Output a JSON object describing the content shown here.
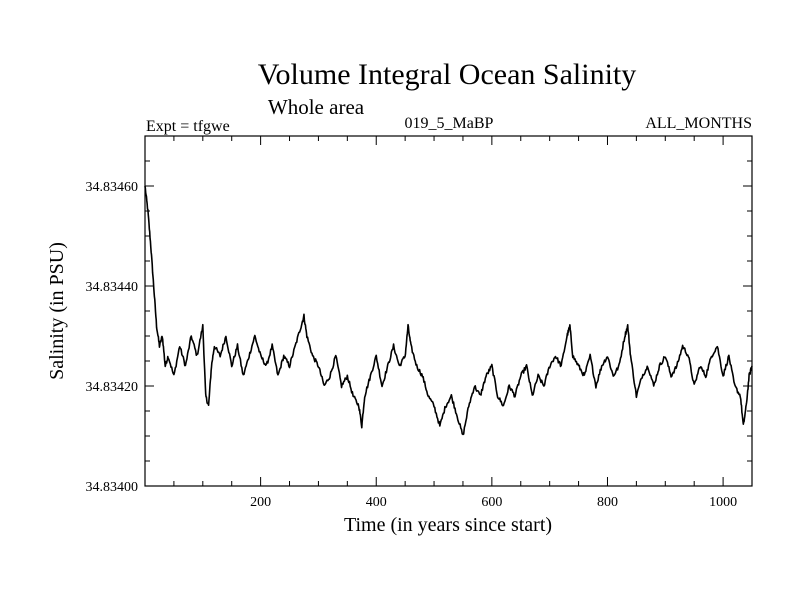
{
  "chart_data": {
    "type": "line",
    "title": "Volume Integral Ocean Salinity",
    "subtitle": "Whole area",
    "annotations": {
      "left": "Expt = tfgwe",
      "center": "019_5_MaBP",
      "right": "ALL_MONTHS"
    },
    "xlabel": "Time (in years since start)",
    "ylabel": "Salinity (in PSU)",
    "xlim": [
      0,
      1050
    ],
    "ylim": [
      34.834,
      34.8347
    ],
    "x_ticks": [
      200,
      400,
      600,
      800,
      1000
    ],
    "x_tick_labels": [
      "200",
      "400",
      "600",
      "800",
      "1000"
    ],
    "y_ticks": [
      34.834,
      34.8342,
      34.8344,
      34.8346
    ],
    "y_tick_labels": [
      "34.83400",
      "34.83420",
      "34.83440",
      "34.83460"
    ],
    "grid": false,
    "series": [
      {
        "name": "Salinity",
        "color": "#000000",
        "x": [
          0,
          5,
          10,
          15,
          20,
          25,
          30,
          35,
          40,
          50,
          60,
          70,
          80,
          90,
          100,
          105,
          110,
          115,
          120,
          130,
          140,
          150,
          160,
          170,
          180,
          190,
          200,
          210,
          220,
          230,
          240,
          250,
          260,
          270,
          275,
          280,
          290,
          300,
          310,
          320,
          330,
          340,
          350,
          360,
          370,
          375,
          380,
          390,
          400,
          410,
          420,
          430,
          440,
          450,
          455,
          460,
          470,
          480,
          490,
          500,
          510,
          520,
          530,
          540,
          550,
          560,
          570,
          580,
          590,
          600,
          610,
          620,
          630,
          640,
          650,
          660,
          670,
          680,
          690,
          700,
          710,
          720,
          730,
          735,
          740,
          750,
          760,
          770,
          780,
          790,
          800,
          810,
          820,
          830,
          835,
          840,
          850,
          860,
          870,
          880,
          890,
          900,
          910,
          920,
          930,
          940,
          950,
          960,
          970,
          980,
          990,
          1000,
          1010,
          1020,
          1030,
          1035,
          1040,
          1045,
          1050
        ],
        "values": [
          34.8346,
          34.83455,
          34.83448,
          34.8344,
          34.83432,
          34.83428,
          34.8343,
          34.83424,
          34.83426,
          34.83422,
          34.83428,
          34.83424,
          34.8343,
          34.83426,
          34.83432,
          34.83418,
          34.83416,
          34.83424,
          34.83428,
          34.83426,
          34.8343,
          34.83424,
          34.83428,
          34.83422,
          34.83426,
          34.8343,
          34.83426,
          34.83424,
          34.83428,
          34.83422,
          34.83426,
          34.83424,
          34.83428,
          34.83432,
          34.83434,
          34.8343,
          34.83426,
          34.83424,
          34.8342,
          34.83422,
          34.83426,
          34.8342,
          34.83422,
          34.83418,
          34.83416,
          34.83412,
          34.83418,
          34.83422,
          34.83426,
          34.8342,
          34.83424,
          34.83428,
          34.83424,
          34.83426,
          34.83432,
          34.83428,
          34.83424,
          34.83422,
          34.83418,
          34.83416,
          34.83412,
          34.83416,
          34.83418,
          34.83414,
          34.8341,
          34.83416,
          34.8342,
          34.83418,
          34.83422,
          34.83424,
          34.83418,
          34.83416,
          34.8342,
          34.83418,
          34.83422,
          34.83424,
          34.83418,
          34.83422,
          34.8342,
          34.83424,
          34.83426,
          34.83424,
          34.8343,
          34.83432,
          34.83426,
          34.83424,
          34.83422,
          34.83426,
          34.8342,
          34.83424,
          34.83426,
          34.83422,
          34.83424,
          34.8343,
          34.83432,
          34.83426,
          34.83418,
          34.83422,
          34.83424,
          34.8342,
          34.83424,
          34.83426,
          34.83422,
          34.83424,
          34.83428,
          34.83426,
          34.8342,
          34.83424,
          34.83422,
          34.83426,
          34.83428,
          34.83422,
          34.83426,
          34.8342,
          34.83418,
          34.83412,
          34.83416,
          34.83422,
          34.83424
        ]
      }
    ]
  }
}
